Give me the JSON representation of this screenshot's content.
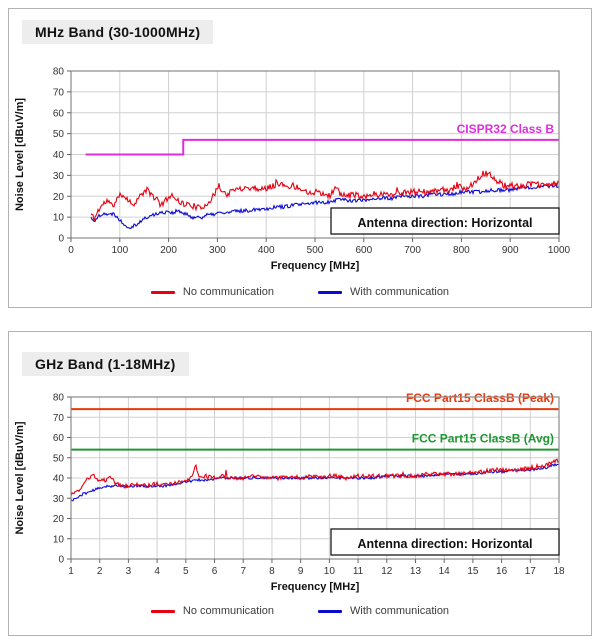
{
  "chart_data": [
    {
      "type": "line",
      "title": "MHz Band (30-1000MHz)",
      "xlabel": "Frequency [MHz]",
      "ylabel": "Noise Level [dBuV/m]",
      "xlim": [
        0,
        1000
      ],
      "ylim": [
        0,
        80
      ],
      "xticks": [
        0,
        100,
        200,
        300,
        400,
        500,
        600,
        700,
        800,
        900,
        1000
      ],
      "yticks": [
        0,
        10,
        20,
        30,
        40,
        50,
        60,
        70,
        80
      ],
      "grid": "major",
      "annotation": "Antenna direction: Horizontal",
      "limit_lines": [
        {
          "label": "CISPR32 Class B",
          "color": "#dd2edd",
          "points": [
            [
              30,
              40
            ],
            [
              230,
              40
            ],
            [
              230,
              47
            ],
            [
              1000,
              47
            ]
          ]
        }
      ],
      "series": [
        {
          "name": "No communication",
          "color": "#e60012",
          "jitter": 1.5,
          "spike": 2.5,
          "points": [
            [
              40,
              12
            ],
            [
              48,
              9
            ],
            [
              55,
              13
            ],
            [
              65,
              16
            ],
            [
              75,
              18
            ],
            [
              85,
              15
            ],
            [
              95,
              19
            ],
            [
              105,
              21
            ],
            [
              115,
              19
            ],
            [
              125,
              16
            ],
            [
              135,
              18
            ],
            [
              145,
              21
            ],
            [
              155,
              23
            ],
            [
              165,
              21
            ],
            [
              175,
              18
            ],
            [
              185,
              16
            ],
            [
              195,
              18
            ],
            [
              205,
              21
            ],
            [
              215,
              19
            ],
            [
              225,
              17
            ],
            [
              235,
              16
            ],
            [
              245,
              16
            ],
            [
              255,
              15
            ],
            [
              265,
              14
            ],
            [
              275,
              16
            ],
            [
              285,
              18
            ],
            [
              295,
              21
            ],
            [
              303,
              26
            ],
            [
              310,
              22
            ],
            [
              320,
              21
            ],
            [
              335,
              23
            ],
            [
              350,
              24
            ],
            [
              365,
              24
            ],
            [
              380,
              24
            ],
            [
              395,
              23
            ],
            [
              410,
              25
            ],
            [
              425,
              26
            ],
            [
              440,
              25
            ],
            [
              455,
              25
            ],
            [
              470,
              24
            ],
            [
              485,
              22
            ],
            [
              500,
              22
            ],
            [
              515,
              21
            ],
            [
              530,
              20
            ],
            [
              543,
              25
            ],
            [
              550,
              21
            ],
            [
              565,
              20
            ],
            [
              580,
              21
            ],
            [
              600,
              20
            ],
            [
              620,
              21
            ],
            [
              640,
              21
            ],
            [
              660,
              21
            ],
            [
              680,
              22
            ],
            [
              700,
              22
            ],
            [
              720,
              22
            ],
            [
              740,
              22
            ],
            [
              760,
              23
            ],
            [
              780,
              23
            ],
            [
              790,
              25
            ],
            [
              800,
              24
            ],
            [
              815,
              24
            ],
            [
              830,
              28
            ],
            [
              845,
              31
            ],
            [
              860,
              30
            ],
            [
              875,
              27
            ],
            [
              890,
              25
            ],
            [
              905,
              25
            ],
            [
              925,
              25
            ],
            [
              945,
              26
            ],
            [
              965,
              25
            ],
            [
              985,
              26
            ],
            [
              1000,
              26
            ]
          ]
        },
        {
          "name": "With communication",
          "color": "#0b0bd0",
          "jitter": 0.9,
          "spike": 0,
          "points": [
            [
              40,
              10
            ],
            [
              50,
              8
            ],
            [
              58,
              11
            ],
            [
              68,
              12
            ],
            [
              78,
              11
            ],
            [
              88,
              12
            ],
            [
              98,
              9
            ],
            [
              108,
              7
            ],
            [
              118,
              5
            ],
            [
              128,
              6
            ],
            [
              138,
              7
            ],
            [
              148,
              9
            ],
            [
              158,
              10
            ],
            [
              168,
              11
            ],
            [
              178,
              12
            ],
            [
              188,
              12
            ],
            [
              198,
              13
            ],
            [
              208,
              12
            ],
            [
              218,
              13
            ],
            [
              228,
              12
            ],
            [
              238,
              11
            ],
            [
              248,
              10
            ],
            [
              258,
              10
            ],
            [
              268,
              10
            ],
            [
              278,
              11
            ],
            [
              288,
              11
            ],
            [
              300,
              12
            ],
            [
              320,
              12
            ],
            [
              340,
              13
            ],
            [
              360,
              13
            ],
            [
              380,
              14
            ],
            [
              400,
              14
            ],
            [
              420,
              15
            ],
            [
              440,
              15
            ],
            [
              460,
              16
            ],
            [
              480,
              16
            ],
            [
              500,
              17
            ],
            [
              520,
              17
            ],
            [
              540,
              18
            ],
            [
              552,
              19
            ],
            [
              565,
              18
            ],
            [
              580,
              18
            ],
            [
              600,
              18
            ],
            [
              620,
              19
            ],
            [
              640,
              19
            ],
            [
              660,
              19
            ],
            [
              680,
              20
            ],
            [
              700,
              20
            ],
            [
              720,
              20
            ],
            [
              740,
              21
            ],
            [
              760,
              21
            ],
            [
              780,
              21
            ],
            [
              800,
              22
            ],
            [
              820,
              22
            ],
            [
              840,
              22
            ],
            [
              860,
              23
            ],
            [
              880,
              23
            ],
            [
              900,
              23
            ],
            [
              920,
              24
            ],
            [
              940,
              24
            ],
            [
              960,
              25
            ],
            [
              980,
              25
            ],
            [
              1000,
              25
            ]
          ]
        }
      ],
      "legend": [
        {
          "label": "No communication",
          "color": "#e60012"
        },
        {
          "label": "With communication",
          "color": "#0b0bd0"
        }
      ]
    },
    {
      "type": "line",
      "title": "GHz Band (1-18MHz)",
      "xlabel": "Frequency [MHz]",
      "ylabel": "Noise Level [dBuV/m]",
      "xlim": [
        1,
        18
      ],
      "ylim": [
        0,
        80
      ],
      "xticks": [
        1,
        2,
        3,
        4,
        5,
        6,
        7,
        8,
        9,
        10,
        11,
        12,
        13,
        14,
        15,
        16,
        17,
        18
      ],
      "yticks": [
        0,
        10,
        20,
        30,
        40,
        50,
        60,
        70,
        80
      ],
      "grid": "major",
      "annotation": "Antenna direction: Horizontal",
      "limit_lines": [
        {
          "label": "FCC Part15 ClassB (Peak)",
          "color": "#e8380d",
          "points": [
            [
              1,
              74
            ],
            [
              18,
              74
            ]
          ]
        },
        {
          "label": "FCC Part15 ClassB (Avg)",
          "color": "#1f9632",
          "points": [
            [
              1,
              54
            ],
            [
              18,
              54
            ]
          ]
        }
      ],
      "series": [
        {
          "name": "No communication",
          "color": "#e60012",
          "jitter": 1.0,
          "spike": 2.5,
          "points": [
            [
              1,
              31
            ],
            [
              1.2,
              33
            ],
            [
              1.4,
              36
            ],
            [
              1.6,
              40
            ],
            [
              1.8,
              41
            ],
            [
              2,
              38
            ],
            [
              2.2,
              39
            ],
            [
              2.4,
              40
            ],
            [
              2.6,
              37
            ],
            [
              2.8,
              36
            ],
            [
              3,
              36
            ],
            [
              3.3,
              37
            ],
            [
              3.6,
              36
            ],
            [
              3.9,
              37
            ],
            [
              4.2,
              37
            ],
            [
              4.5,
              37
            ],
            [
              4.8,
              38
            ],
            [
              5,
              39
            ],
            [
              5.2,
              40
            ],
            [
              5.35,
              46
            ],
            [
              5.5,
              40
            ],
            [
              5.7,
              41
            ],
            [
              6,
              40
            ],
            [
              6.3,
              41
            ],
            [
              6.6,
              40
            ],
            [
              7,
              40
            ],
            [
              7.4,
              41
            ],
            [
              7.8,
              40
            ],
            [
              8.2,
              40
            ],
            [
              8.6,
              41
            ],
            [
              9,
              40
            ],
            [
              9.4,
              41
            ],
            [
              9.8,
              40
            ],
            [
              10.2,
              41
            ],
            [
              10.6,
              40
            ],
            [
              11,
              41
            ],
            [
              11.4,
              41
            ],
            [
              11.8,
              41
            ],
            [
              12.2,
              41
            ],
            [
              12.6,
              41
            ],
            [
              13,
              41
            ],
            [
              13.4,
              42
            ],
            [
              13.8,
              42
            ],
            [
              14.2,
              42
            ],
            [
              14.6,
              42
            ],
            [
              15,
              43
            ],
            [
              15.4,
              43
            ],
            [
              15.8,
              44
            ],
            [
              16.2,
              44
            ],
            [
              16.6,
              44
            ],
            [
              17,
              45
            ],
            [
              17.4,
              46
            ],
            [
              17.7,
              47
            ],
            [
              18,
              49
            ]
          ]
        },
        {
          "name": "With communication",
          "color": "#0b0bd0",
          "jitter": 0.6,
          "spike": 0,
          "points": [
            [
              1,
              29
            ],
            [
              1.2,
              30
            ],
            [
              1.4,
              32
            ],
            [
              1.6,
              33
            ],
            [
              1.8,
              34
            ],
            [
              2,
              35
            ],
            [
              2.2,
              36
            ],
            [
              2.4,
              36
            ],
            [
              2.6,
              36
            ],
            [
              3,
              36
            ],
            [
              3.4,
              36
            ],
            [
              3.8,
              36
            ],
            [
              4.2,
              36
            ],
            [
              4.6,
              37
            ],
            [
              5,
              38
            ],
            [
              5.4,
              39
            ],
            [
              5.8,
              39
            ],
            [
              6.2,
              40
            ],
            [
              6.6,
              40
            ],
            [
              7,
              40
            ],
            [
              7.5,
              40
            ],
            [
              8,
              40
            ],
            [
              8.5,
              40
            ],
            [
              9,
              40
            ],
            [
              9.5,
              40
            ],
            [
              10,
              40
            ],
            [
              10.5,
              40
            ],
            [
              11,
              40
            ],
            [
              11.5,
              40
            ],
            [
              12,
              41
            ],
            [
              12.5,
              41
            ],
            [
              13,
              41
            ],
            [
              13.5,
              41
            ],
            [
              14,
              42
            ],
            [
              14.5,
              42
            ],
            [
              15,
              42
            ],
            [
              15.5,
              43
            ],
            [
              16,
              43
            ],
            [
              16.5,
              44
            ],
            [
              17,
              44
            ],
            [
              17.5,
              45
            ],
            [
              18,
              47
            ]
          ]
        }
      ],
      "legend": [
        {
          "label": "No communication",
          "color": "#e60012"
        },
        {
          "label": "With communication",
          "color": "#0b0bd0"
        }
      ]
    }
  ],
  "style": {
    "grid_color": "#d0d0d0",
    "frame_color": "#8a8a8a",
    "tick_color": "#666666",
    "tick_label_color": "#333333",
    "axis_title_color": "#111111",
    "annotation_color": "#111111"
  }
}
